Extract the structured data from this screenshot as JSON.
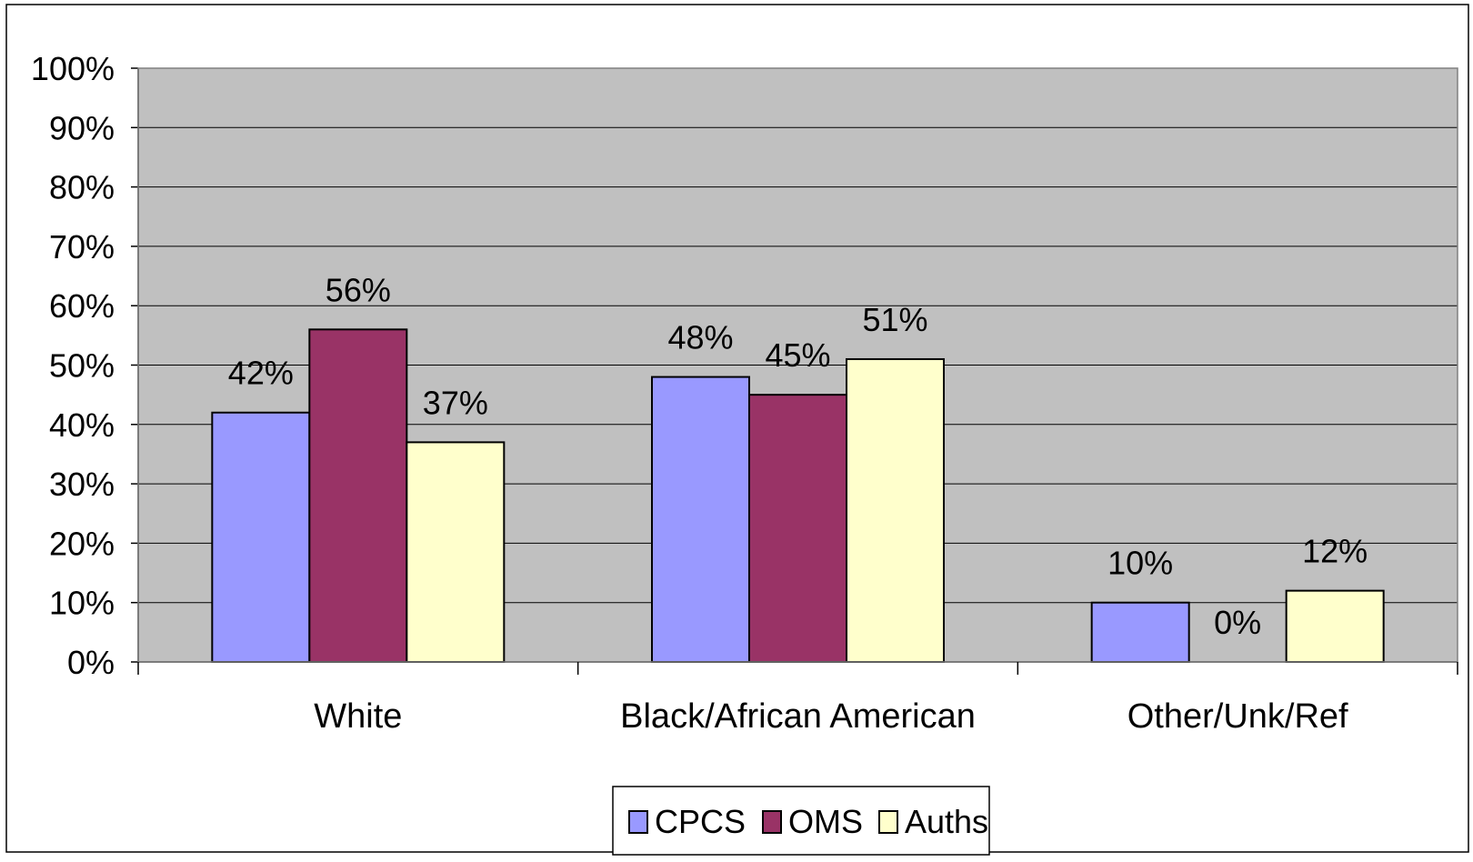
{
  "chart_data": {
    "type": "bar",
    "title": "",
    "xlabel": "",
    "ylabel": "",
    "categories": [
      "White",
      "Black/African American",
      "Other/Unk/Ref"
    ],
    "series": [
      {
        "name": "CPCS",
        "values": [
          42,
          48,
          10
        ],
        "color": "#9999ff"
      },
      {
        "name": "OMS",
        "values": [
          56,
          45,
          0
        ],
        "color": "#993366"
      },
      {
        "name": "Auths",
        "values": [
          37,
          51,
          12
        ],
        "color": "#ffffcc"
      }
    ],
    "data_labels": [
      [
        "42%",
        "48%",
        "10%"
      ],
      [
        "56%",
        "45%",
        "0%"
      ],
      [
        "37%",
        "51%",
        "12%"
      ]
    ],
    "ylim": [
      0,
      100
    ],
    "yticks": [
      "0%",
      "10%",
      "20%",
      "30%",
      "40%",
      "50%",
      "60%",
      "70%",
      "80%",
      "90%",
      "100%"
    ],
    "grid": true,
    "plot_background": "#c0c0c0",
    "legend_position": "bottom"
  }
}
